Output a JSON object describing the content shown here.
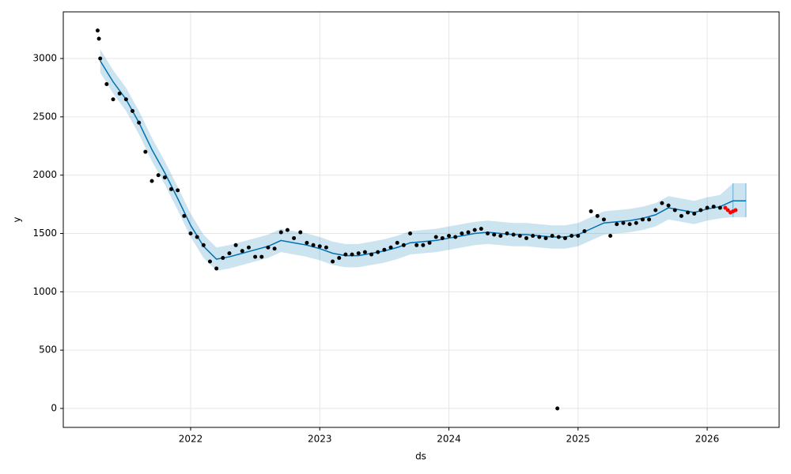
{
  "chart_data": {
    "type": "forecast",
    "xlabel": "ds",
    "ylabel": "y",
    "xlim": [
      2021.014,
      2026.557
    ],
    "ylim": [
      -162.5,
      3400
    ],
    "xticks": [
      2022,
      2023,
      2024,
      2025,
      2026
    ],
    "yticks": [
      0,
      500,
      1000,
      1500,
      2000,
      2500,
      3000
    ],
    "grid": true,
    "observed": {
      "color": "#000000",
      "x": [
        2021.28,
        2021.29,
        2021.3,
        2021.35,
        2021.4,
        2021.45,
        2021.5,
        2021.55,
        2021.6,
        2021.65,
        2021.7,
        2021.75,
        2021.8,
        2021.85,
        2021.9,
        2021.95,
        2022.0,
        2022.05,
        2022.1,
        2022.15,
        2022.2,
        2022.25,
        2022.3,
        2022.35,
        2022.4,
        2022.45,
        2022.5,
        2022.55,
        2022.6,
        2022.65,
        2022.7,
        2022.75,
        2022.8,
        2022.85,
        2022.9,
        2022.95,
        2023.0,
        2023.05,
        2023.1,
        2023.15,
        2023.2,
        2023.25,
        2023.3,
        2023.35,
        2023.4,
        2023.45,
        2023.5,
        2023.55,
        2023.6,
        2023.65,
        2023.7,
        2023.75,
        2023.8,
        2023.85,
        2023.9,
        2023.95,
        2024.0,
        2024.05,
        2024.1,
        2024.15,
        2024.2,
        2024.25,
        2024.3,
        2024.35,
        2024.4,
        2024.45,
        2024.5,
        2024.55,
        2024.6,
        2024.65,
        2024.7,
        2024.75,
        2024.8,
        2024.84,
        2024.85,
        2024.9,
        2024.95,
        2025.0,
        2025.05,
        2025.1,
        2025.15,
        2025.2,
        2025.25,
        2025.3,
        2025.35,
        2025.4,
        2025.45,
        2025.5,
        2025.55,
        2025.6,
        2025.65,
        2025.7,
        2025.75,
        2025.8,
        2025.85,
        2025.9,
        2025.95,
        2026.0,
        2026.05,
        2026.1
      ],
      "values": [
        3240,
        3170,
        3000,
        2780,
        2650,
        2700,
        2650,
        2550,
        2450,
        2200,
        1950,
        2000,
        1980,
        1880,
        1870,
        1650,
        1500,
        1470,
        1400,
        1260,
        1200,
        1290,
        1330,
        1400,
        1350,
        1380,
        1300,
        1300,
        1380,
        1370,
        1510,
        1530,
        1460,
        1510,
        1420,
        1400,
        1390,
        1380,
        1260,
        1290,
        1320,
        1320,
        1330,
        1340,
        1320,
        1340,
        1360,
        1380,
        1420,
        1400,
        1500,
        1400,
        1400,
        1420,
        1470,
        1460,
        1480,
        1470,
        1500,
        1510,
        1530,
        1540,
        1500,
        1490,
        1480,
        1500,
        1490,
        1480,
        1460,
        1480,
        1470,
        1460,
        1480,
        0,
        1470,
        1460,
        1480,
        1480,
        1520,
        1690,
        1650,
        1620,
        1480,
        1580,
        1590,
        1580,
        1590,
        1620,
        1620,
        1700,
        1760,
        1740,
        1700,
        1650,
        1680,
        1670,
        1700,
        1720,
        1730,
        1720
      ]
    },
    "forecast": {
      "color": "#0072B2",
      "x": [
        2021.3,
        2021.4,
        2021.5,
        2021.6,
        2021.7,
        2021.8,
        2021.9,
        2022.0,
        2022.1,
        2022.2,
        2022.3,
        2022.4,
        2022.5,
        2022.6,
        2022.7,
        2022.8,
        2022.9,
        2023.0,
        2023.1,
        2023.2,
        2023.3,
        2023.4,
        2023.5,
        2023.6,
        2023.7,
        2023.8,
        2023.9,
        2024.0,
        2024.1,
        2024.2,
        2024.3,
        2024.4,
        2024.5,
        2024.6,
        2024.7,
        2024.8,
        2024.9,
        2025.0,
        2025.1,
        2025.2,
        2025.3,
        2025.4,
        2025.5,
        2025.6,
        2025.7,
        2025.8,
        2025.9,
        2026.0,
        2026.1,
        2026.2,
        2026.3
      ],
      "values": [
        2980,
        2800,
        2650,
        2450,
        2220,
        2020,
        1800,
        1570,
        1390,
        1280,
        1300,
        1330,
        1360,
        1390,
        1440,
        1420,
        1400,
        1370,
        1330,
        1310,
        1310,
        1330,
        1350,
        1380,
        1420,
        1430,
        1440,
        1460,
        1480,
        1500,
        1510,
        1500,
        1490,
        1490,
        1480,
        1470,
        1470,
        1490,
        1540,
        1590,
        1600,
        1610,
        1630,
        1660,
        1720,
        1700,
        1680,
        1710,
        1730,
        1780,
        1780
      ],
      "lower": [
        2880,
        2700,
        2550,
        2350,
        2120,
        1920,
        1700,
        1470,
        1290,
        1180,
        1200,
        1230,
        1260,
        1290,
        1340,
        1320,
        1300,
        1270,
        1230,
        1210,
        1210,
        1230,
        1250,
        1280,
        1320,
        1330,
        1340,
        1360,
        1380,
        1400,
        1410,
        1400,
        1390,
        1390,
        1380,
        1370,
        1370,
        1390,
        1440,
        1490,
        1500,
        1510,
        1530,
        1560,
        1620,
        1600,
        1580,
        1610,
        1630,
        1640,
        1640
      ],
      "upper": [
        3080,
        2900,
        2750,
        2550,
        2320,
        2120,
        1900,
        1670,
        1490,
        1380,
        1400,
        1430,
        1460,
        1490,
        1540,
        1520,
        1500,
        1470,
        1430,
        1410,
        1410,
        1430,
        1450,
        1480,
        1520,
        1530,
        1540,
        1560,
        1580,
        1600,
        1610,
        1600,
        1590,
        1590,
        1580,
        1570,
        1570,
        1590,
        1640,
        1690,
        1700,
        1710,
        1730,
        1760,
        1820,
        1800,
        1780,
        1810,
        1830,
        1930,
        1930
      ]
    },
    "actual": {
      "color": "#ff0000",
      "x": [
        2026.14,
        2026.16,
        2026.18,
        2026.2,
        2026.22
      ],
      "values": [
        1720,
        1700,
        1680,
        1690,
        1700
      ]
    }
  }
}
